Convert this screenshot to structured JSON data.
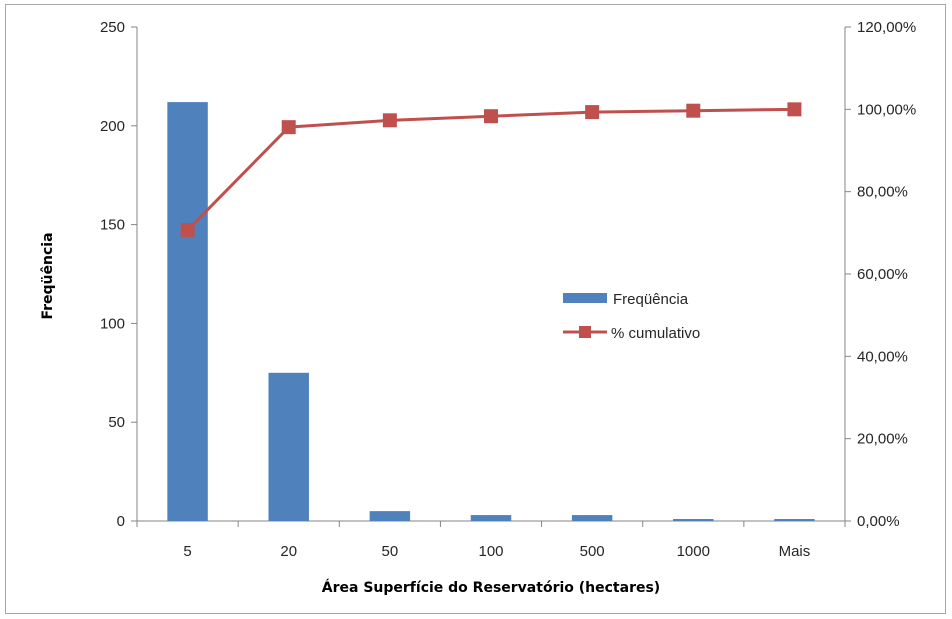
{
  "chart_data": {
    "type": "bar",
    "categories": [
      "5",
      "20",
      "50",
      "100",
      "500",
      "1000",
      "Mais"
    ],
    "series": [
      {
        "name": "Freqüência",
        "kind": "bar",
        "axis": "left",
        "color": "#4f81bd",
        "values": [
          212,
          75,
          5,
          3,
          3,
          1,
          1
        ]
      },
      {
        "name": "% cumulativo",
        "kind": "line",
        "axis": "right",
        "color": "#c0504d",
        "values": [
          70.67,
          95.67,
          97.33,
          98.33,
          99.33,
          99.67,
          100.0
        ]
      }
    ],
    "xlabel": "Área Superfície do Reservatório (hectares)",
    "ylabel": "Freqüência",
    "ylim": [
      0,
      250
    ],
    "y_ticks": [
      "0",
      "50",
      "100",
      "150",
      "200",
      "250"
    ],
    "y2lim": [
      0,
      120
    ],
    "y2_ticks": [
      "0,00%",
      "20,00%",
      "40,00%",
      "60,00%",
      "80,00%",
      "100,00%",
      "120,00%"
    ],
    "grid": false,
    "legend_position": "center-right"
  }
}
